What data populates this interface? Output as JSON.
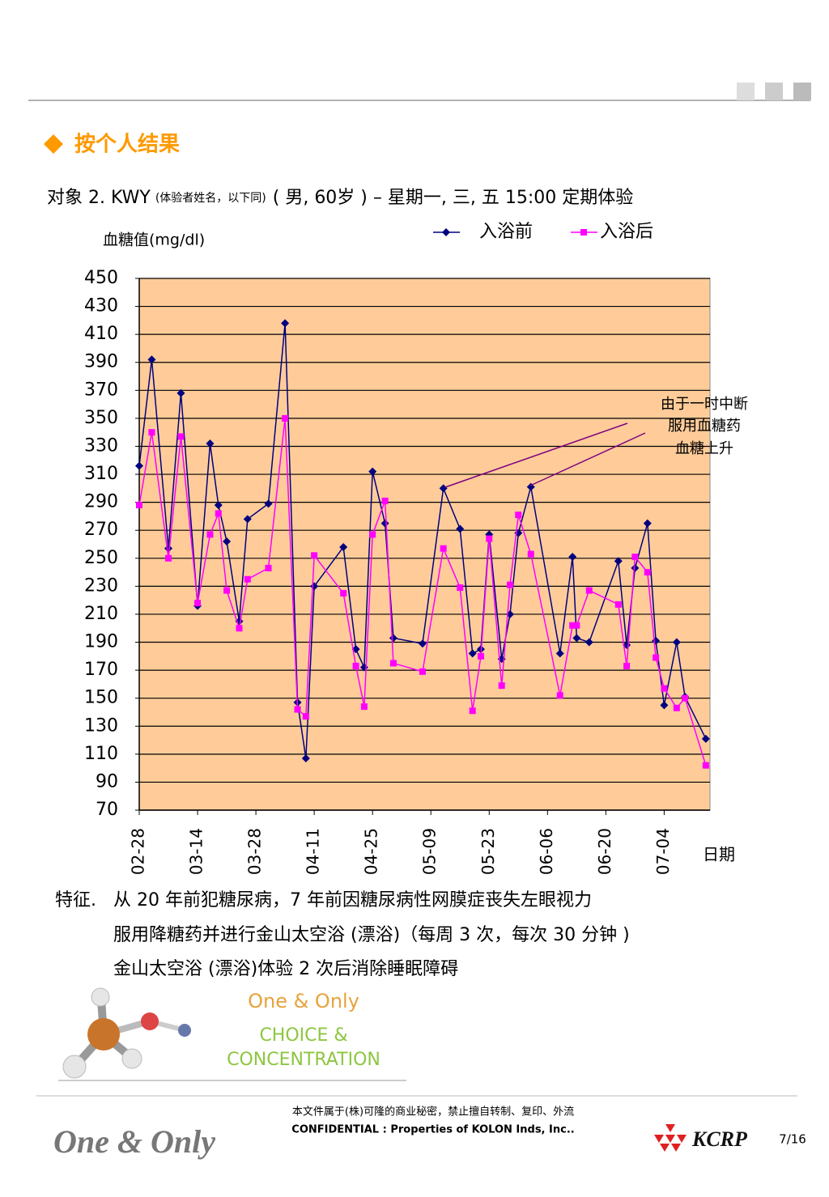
{
  "header": {
    "title": "按个人结果"
  },
  "subject": {
    "name": "对象 2.  KWY",
    "note": "(体验者姓名，以下同)",
    "detail": "( 男, 60岁 )  –  星期一, 三, 五 15:00 定期体验"
  },
  "chart_data": {
    "type": "line",
    "y_label": "血糖值(mg/dl)",
    "x_label": "日期",
    "annotation": [
      "由于一时中断",
      "服用血糖药",
      "血糖上升"
    ],
    "x": [
      "02-28",
      "03-03",
      "03-07",
      "03-10",
      "03-14",
      "03-17",
      "03-19",
      "03-21",
      "03-24",
      "03-26",
      "03-31",
      "04-04",
      "04-07",
      "04-09",
      "04-11",
      "04-18",
      "04-21",
      "04-23",
      "04-25",
      "04-28",
      "04-30",
      "05-07",
      "05-12",
      "05-16",
      "05-19",
      "05-21",
      "05-23",
      "05-26",
      "05-28",
      "05-30",
      "06-02",
      "06-09",
      "06-12",
      "06-13",
      "06-16",
      "06-23",
      "06-25",
      "06-27",
      "06-30",
      "07-02",
      "07-04",
      "07-07",
      "07-09",
      "07-14"
    ],
    "series": [
      {
        "name": "入浴前",
        "color": "#000080",
        "marker": "diamond",
        "values": [
          316,
          392,
          257,
          368,
          216,
          332,
          288,
          262,
          205,
          278,
          289,
          418,
          147,
          107,
          230,
          258,
          185,
          172,
          312,
          275,
          193,
          189,
          300,
          271,
          182,
          185,
          267,
          178,
          210,
          268,
          301,
          182,
          251,
          193,
          190,
          248,
          188,
          243,
          275,
          191,
          145,
          190,
          151,
          121
        ]
      },
      {
        "name": "入浴后",
        "color": "#FF00FF",
        "marker": "square",
        "values": [
          288,
          340,
          250,
          337,
          218,
          267,
          282,
          227,
          200,
          235,
          243,
          350,
          142,
          137,
          252,
          225,
          173,
          144,
          267,
          291,
          175,
          169,
          257,
          229,
          141,
          180,
          264,
          159,
          231,
          281,
          253,
          152,
          202,
          202,
          227,
          217,
          173,
          251,
          240,
          179,
          157,
          143,
          150,
          102
        ]
      }
    ],
    "ylim": [
      70,
      450
    ],
    "yticks": [
      70,
      90,
      110,
      130,
      150,
      170,
      190,
      210,
      230,
      250,
      270,
      290,
      310,
      330,
      350,
      370,
      390,
      410,
      430,
      450
    ],
    "xlim": [
      "02-28",
      "07-15"
    ],
    "xticks": [
      "02-28",
      "03-14",
      "03-28",
      "04-11",
      "04-25",
      "05-09",
      "05-23",
      "06-06",
      "06-20",
      "07-04"
    ],
    "grid": true,
    "legend": "top"
  },
  "features": {
    "label": "特征.",
    "lines": [
      "从 20 年前犯糖尿病，7 年前因糖尿病性网膜症丧失左眼视力",
      "服用降糖药并进行金山太空浴 (漂浴)（每周 3 次，每次 30 分钟 )",
      "金山太空浴 (漂浴)体验 2 次后消除睡眠障碍"
    ]
  },
  "logo": [
    "One & Only",
    "CHOICE &",
    "CONCENTRATION"
  ],
  "footer": {
    "notice": "本文件属于(株)可隆的商业秘密，禁止擅自转制、复印、外流",
    "confidential": "CONFIDENTIAL : Properties of KOLON Inds, Inc..",
    "brand": "One & Only",
    "company": "KCRP",
    "page": "7/16"
  }
}
